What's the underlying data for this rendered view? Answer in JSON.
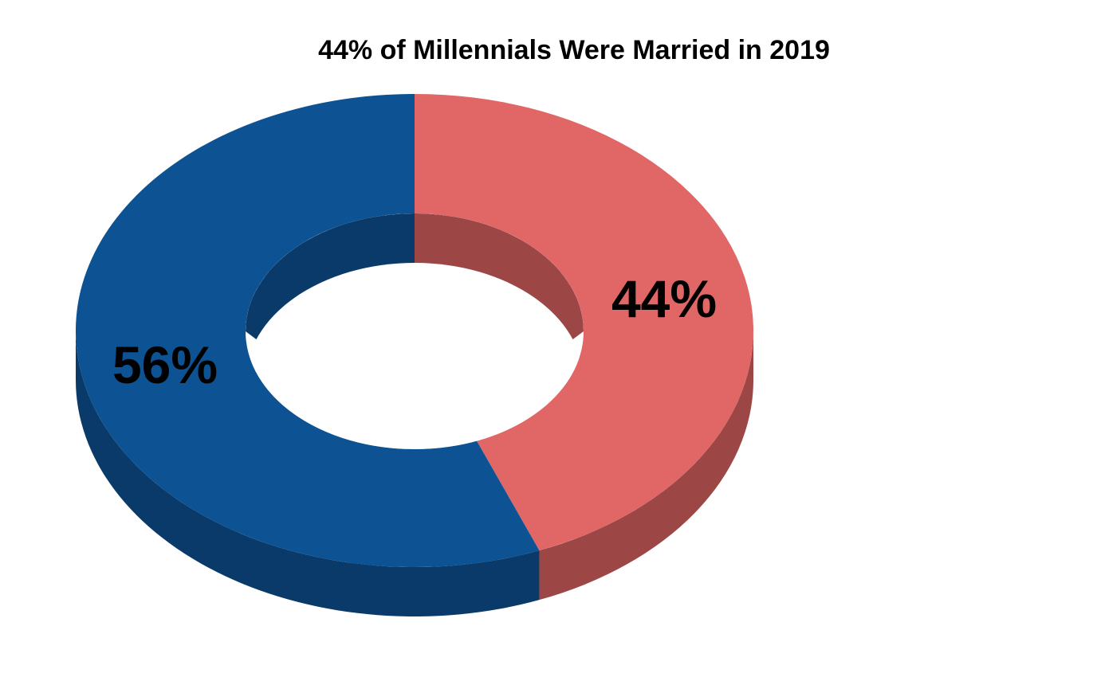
{
  "chart_data": {
    "type": "pie",
    "variant": "3d-donut",
    "title": "44% of Millennials Were Married in 2019",
    "slices": [
      {
        "value": 44,
        "label": "44%",
        "color": "#E06766",
        "side_color": "#9C4646"
      },
      {
        "value": 56,
        "label": "56%",
        "color": "#0D5393",
        "side_color": "#0A3A69"
      }
    ],
    "legend": "none"
  }
}
